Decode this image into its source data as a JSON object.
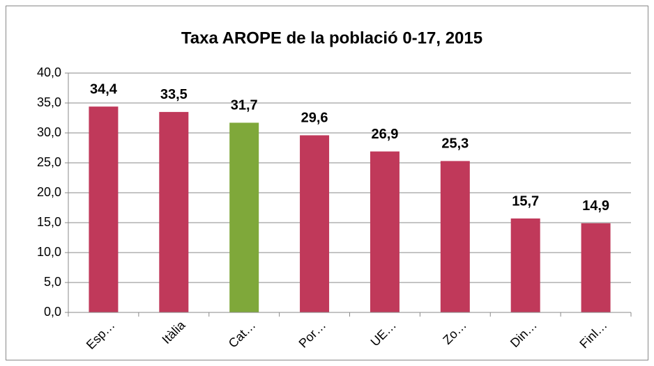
{
  "chart_data": {
    "type": "bar",
    "title": "Taxa AROPE de la població 0-17, 2015",
    "categories": [
      "Esp…",
      "Itàlia",
      "Cat…",
      "Por…",
      "UE…",
      "Zo…",
      "Din…",
      "Finl…"
    ],
    "values": [
      34.4,
      33.5,
      31.7,
      29.6,
      26.9,
      25.3,
      15.7,
      14.9
    ],
    "value_labels": [
      "34,4",
      "33,5",
      "31,7",
      "29,6",
      "26,9",
      "25,3",
      "15,7",
      "14,9"
    ],
    "colors": [
      "#c0395a",
      "#c0395a",
      "#7fa83a",
      "#c0395a",
      "#c0395a",
      "#c0395a",
      "#c0395a",
      "#c0395a"
    ],
    "ylim": [
      0,
      40
    ],
    "yticks": [
      {
        "value": 0,
        "label": "0,0"
      },
      {
        "value": 5,
        "label": "5,0"
      },
      {
        "value": 10,
        "label": "10,0"
      },
      {
        "value": 15,
        "label": "15,0"
      },
      {
        "value": 20,
        "label": "20,0"
      },
      {
        "value": 25,
        "label": "25,0"
      },
      {
        "value": 30,
        "label": "30,0"
      },
      {
        "value": 35,
        "label": "35,0"
      },
      {
        "value": 40,
        "label": "40,0"
      }
    ],
    "grid": true
  }
}
